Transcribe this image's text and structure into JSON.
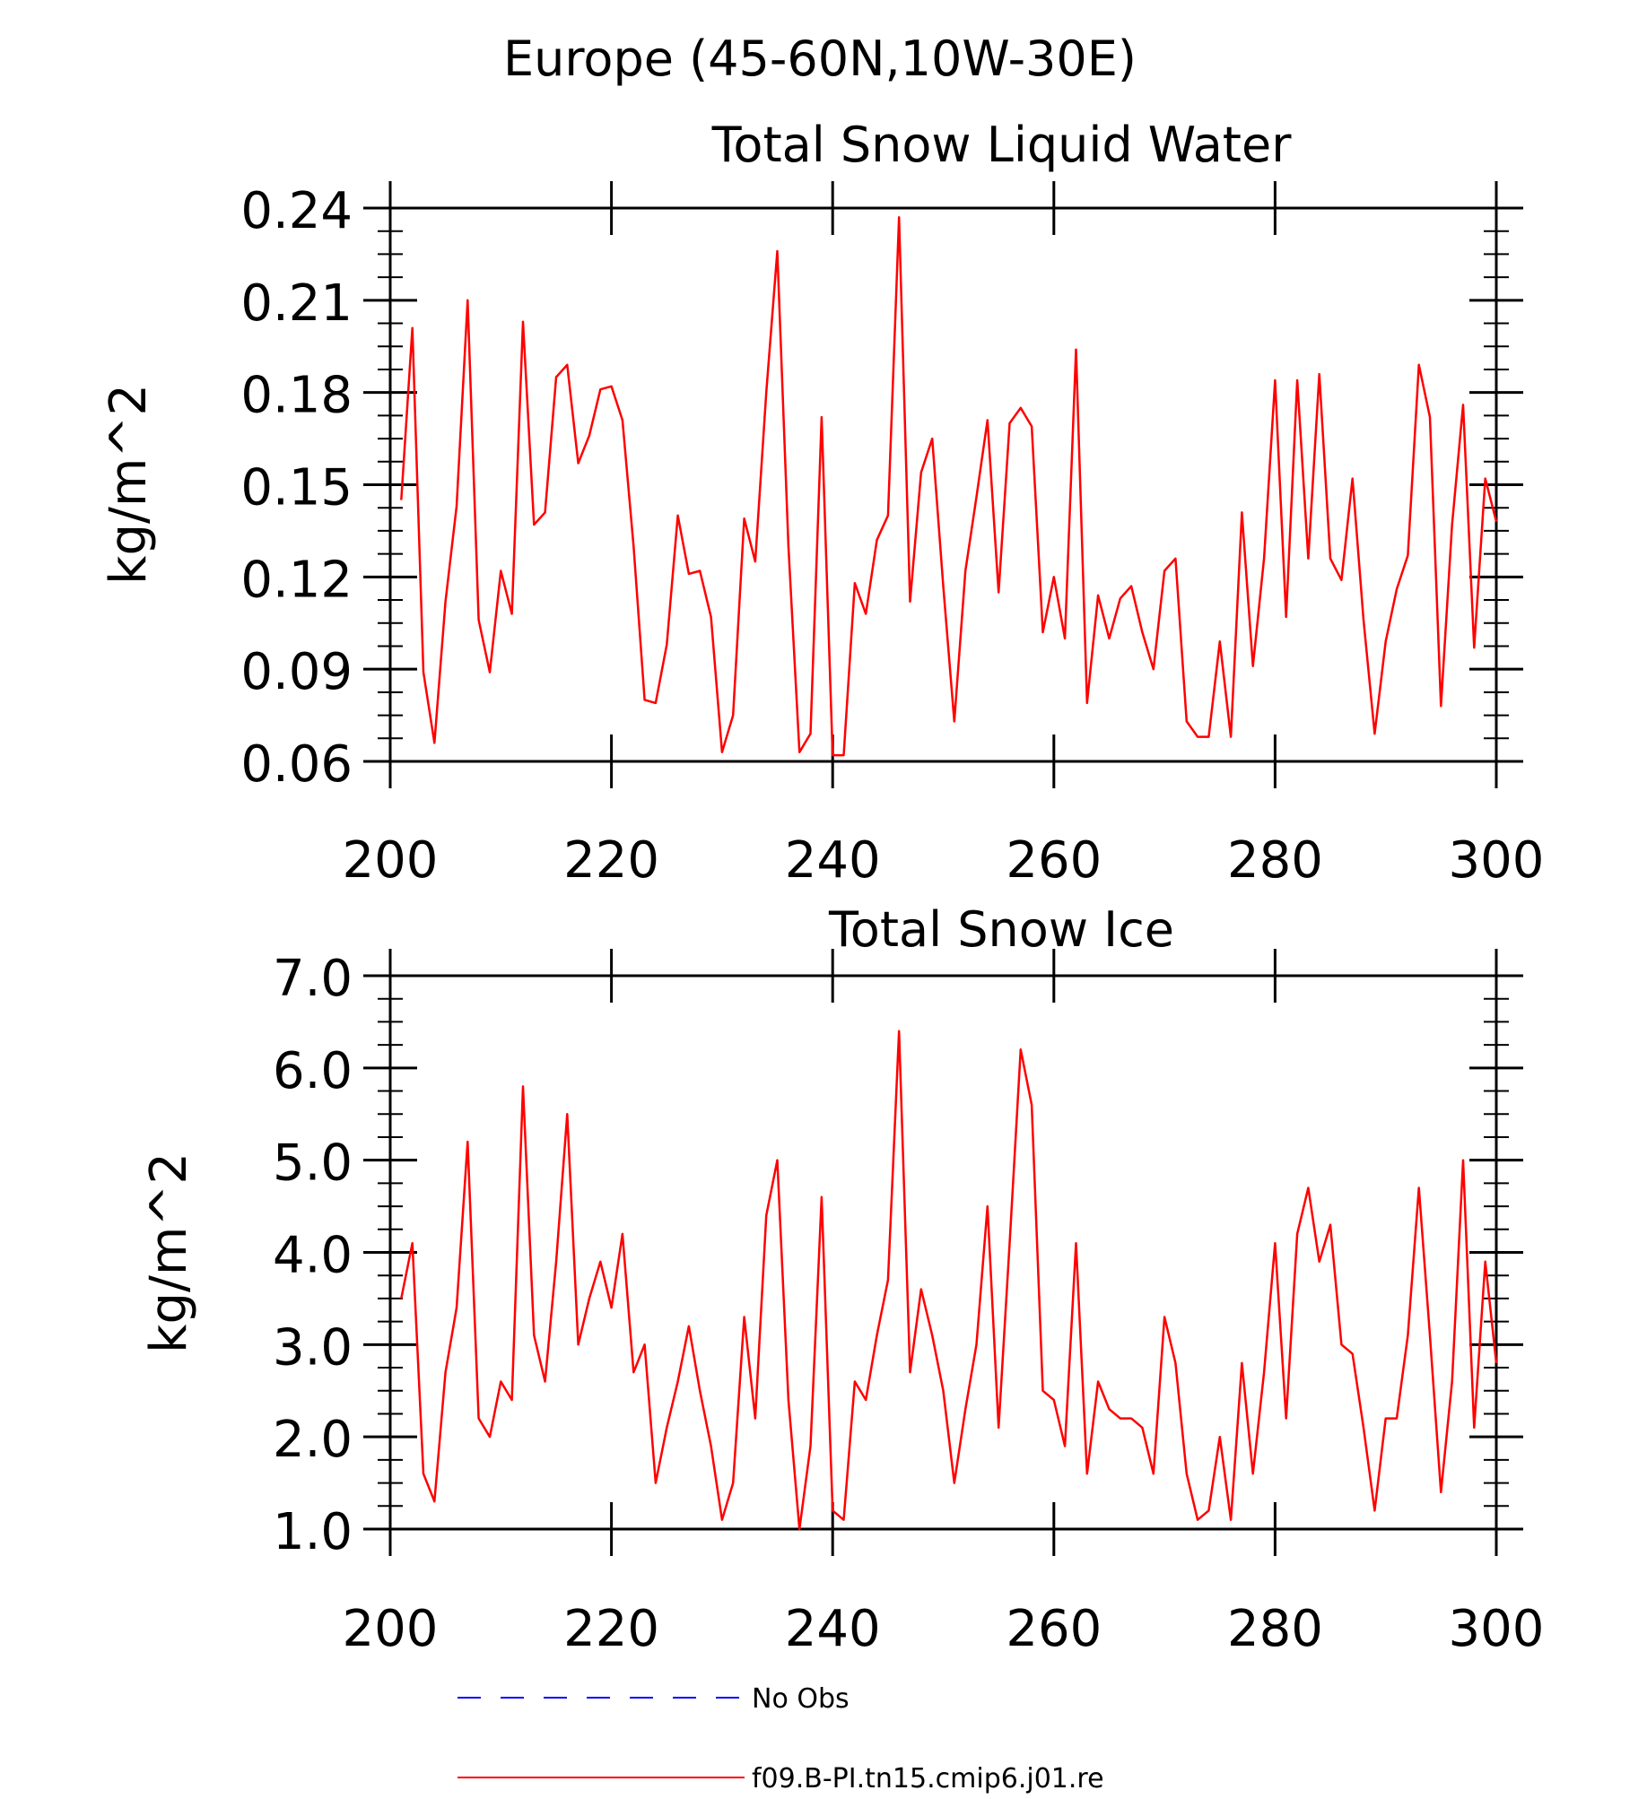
{
  "figure": {
    "title": "Europe (45-60N,10W-30E)"
  },
  "legend": {
    "entries": [
      {
        "label": "No Obs",
        "color": "#0000ff",
        "dash": true
      },
      {
        "label": "f09.B-PI.tn15.cmip6.j01.re",
        "color": "#ff0000",
        "dash": false
      }
    ]
  },
  "chart_data": [
    {
      "type": "line",
      "title": "Total Snow Liquid Water",
      "xlabel": "",
      "ylabel": "kg/m^2",
      "xlim": [
        200,
        300
      ],
      "ylim": [
        0.06,
        0.24
      ],
      "xticks": [
        200,
        220,
        240,
        260,
        280,
        300
      ],
      "yticks": [
        "0.06",
        "0.09",
        "0.12",
        "0.15",
        "0.18",
        "0.21",
        "0.24"
      ],
      "grid": false,
      "series": [
        {
          "name": "f09.B-PI.tn15.cmip6.j01.re",
          "color": "#ff0000",
          "x": [
            201,
            202,
            203,
            204,
            205,
            206,
            207,
            208,
            209,
            210,
            211,
            212,
            213,
            214,
            215,
            216,
            217,
            218,
            219,
            220,
            221,
            222,
            223,
            224,
            225,
            226,
            227,
            228,
            229,
            230,
            231,
            232,
            233,
            234,
            235,
            236,
            237,
            238,
            239,
            240,
            241,
            242,
            243,
            244,
            245,
            246,
            247,
            248,
            249,
            250,
            251,
            252,
            253,
            254,
            255,
            256,
            257,
            258,
            259,
            260,
            261,
            262,
            263,
            264,
            265,
            266,
            267,
            268,
            269,
            270,
            271,
            272,
            273,
            274,
            275,
            276,
            277,
            278,
            279,
            280,
            281,
            282,
            283,
            284,
            285,
            286,
            287,
            288,
            289,
            290,
            291,
            292,
            293,
            294,
            295,
            296,
            297,
            298,
            299,
            300
          ],
          "values": [
            0.145,
            0.201,
            0.089,
            0.066,
            0.112,
            0.143,
            0.21,
            0.106,
            0.089,
            0.122,
            0.108,
            0.203,
            0.137,
            0.141,
            0.185,
            0.189,
            0.157,
            0.166,
            0.181,
            0.182,
            0.171,
            0.13,
            0.08,
            0.079,
            0.098,
            0.14,
            0.121,
            0.122,
            0.107,
            0.063,
            0.075,
            0.139,
            0.125,
            0.18,
            0.226,
            0.13,
            0.063,
            0.069,
            0.172,
            0.062,
            0.062,
            0.118,
            0.108,
            0.132,
            0.14,
            0.237,
            0.112,
            0.154,
            0.165,
            0.117,
            0.073,
            0.122,
            0.146,
            0.171,
            0.115,
            0.17,
            0.175,
            0.169,
            0.102,
            0.12,
            0.1,
            0.194,
            0.079,
            0.114,
            0.1,
            0.113,
            0.117,
            0.102,
            0.09,
            0.122,
            0.126,
            0.073,
            0.068,
            0.068,
            0.099,
            0.068,
            0.141,
            0.091,
            0.126,
            0.184,
            0.107,
            0.184,
            0.126,
            0.186,
            0.126,
            0.119,
            0.152,
            0.106,
            0.069,
            0.099,
            0.116,
            0.127,
            0.189,
            0.172,
            0.078,
            0.137,
            0.176,
            0.097,
            0.152,
            0.138
          ]
        }
      ]
    },
    {
      "type": "line",
      "title": "Total Snow Ice",
      "xlabel": "",
      "ylabel": "kg/m^2",
      "xlim": [
        200,
        300
      ],
      "ylim": [
        1.0,
        7.0
      ],
      "xticks": [
        200,
        220,
        240,
        260,
        280,
        300
      ],
      "yticks": [
        "1.0",
        "2.0",
        "3.0",
        "4.0",
        "5.0",
        "6.0",
        "7.0"
      ],
      "grid": false,
      "series": [
        {
          "name": "f09.B-PI.tn15.cmip6.j01.re",
          "color": "#ff0000",
          "x": [
            201,
            202,
            203,
            204,
            205,
            206,
            207,
            208,
            209,
            210,
            211,
            212,
            213,
            214,
            215,
            216,
            217,
            218,
            219,
            220,
            221,
            222,
            223,
            224,
            225,
            226,
            227,
            228,
            229,
            230,
            231,
            232,
            233,
            234,
            235,
            236,
            237,
            238,
            239,
            240,
            241,
            242,
            243,
            244,
            245,
            246,
            247,
            248,
            249,
            250,
            251,
            252,
            253,
            254,
            255,
            256,
            257,
            258,
            259,
            260,
            261,
            262,
            263,
            264,
            265,
            266,
            267,
            268,
            269,
            270,
            271,
            272,
            273,
            274,
            275,
            276,
            277,
            278,
            279,
            280,
            281,
            282,
            283,
            284,
            285,
            286,
            287,
            288,
            289,
            290,
            291,
            292,
            293,
            294,
            295,
            296,
            297,
            298,
            299,
            300
          ],
          "values": [
            3.5,
            4.1,
            1.6,
            1.3,
            2.7,
            3.4,
            5.2,
            2.2,
            2.0,
            2.6,
            2.4,
            5.8,
            3.1,
            2.6,
            3.9,
            5.5,
            3.0,
            3.5,
            3.9,
            3.4,
            4.2,
            2.7,
            3.0,
            1.5,
            2.1,
            2.6,
            3.2,
            2.5,
            1.9,
            1.1,
            1.5,
            3.3,
            2.2,
            4.4,
            5.0,
            2.4,
            1.0,
            1.9,
            4.6,
            1.2,
            1.1,
            2.6,
            2.4,
            3.1,
            3.7,
            6.4,
            2.7,
            3.6,
            3.1,
            2.5,
            1.5,
            2.3,
            3.0,
            4.5,
            2.1,
            4.1,
            6.2,
            5.6,
            2.5,
            2.4,
            1.9,
            4.1,
            1.6,
            2.6,
            2.3,
            2.2,
            2.2,
            2.1,
            1.6,
            3.3,
            2.8,
            1.6,
            1.1,
            1.2,
            2.0,
            1.1,
            2.8,
            1.6,
            2.7,
            4.1,
            2.2,
            4.2,
            4.7,
            3.9,
            4.3,
            3.0,
            2.9,
            2.1,
            1.2,
            2.2,
            2.2,
            3.1,
            4.7,
            3.1,
            1.4,
            2.6,
            5.0,
            2.1,
            3.9,
            2.8
          ]
        }
      ]
    }
  ]
}
